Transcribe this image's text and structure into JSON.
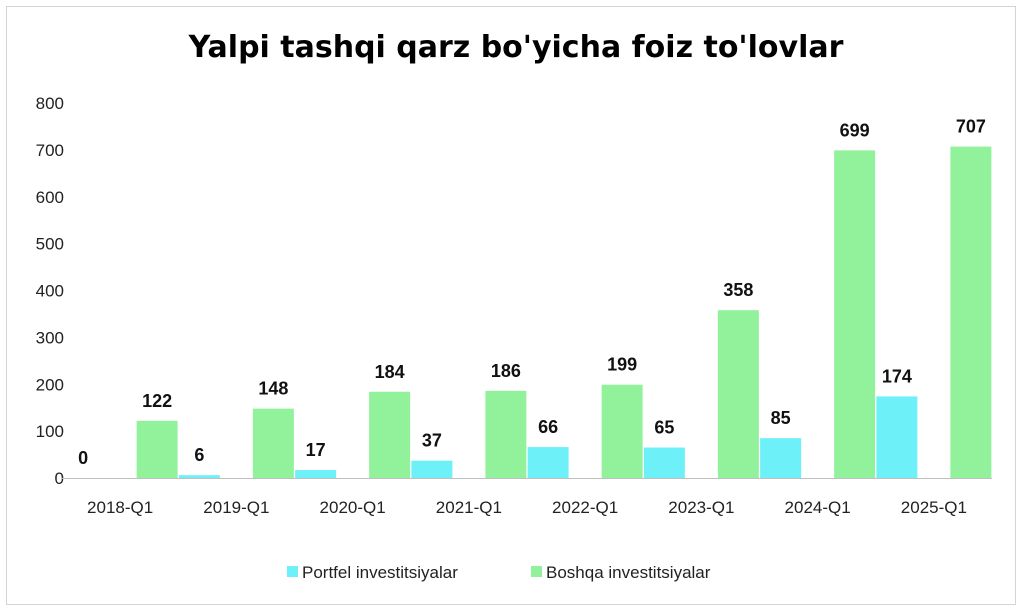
{
  "colors": {
    "portfel": "#6EF0F8",
    "boshqa": "#92F29C",
    "axis": "#bfbfbf",
    "text": "#222222"
  },
  "chart_data": {
    "type": "bar",
    "title": "Yalpi tashqi qarz bo'yicha foiz to'lovlar",
    "xlabel": "",
    "ylabel": "",
    "ylim": [
      0,
      800
    ],
    "yticks": [
      0,
      100,
      200,
      300,
      400,
      500,
      600,
      700,
      800
    ],
    "grid": false,
    "legend_position": "bottom",
    "categories": [
      "2018-Q1",
      "2019-Q1",
      "2020-Q1",
      "2021-Q1",
      "2022-Q1",
      "2023-Q1",
      "2024-Q1",
      "2025-Q1"
    ],
    "series": [
      {
        "name": "Portfel investitsiyalar",
        "color": "#6EF0F8",
        "values": [
          0,
          6,
          17,
          37,
          66,
          65,
          85,
          174
        ]
      },
      {
        "name": "Boshqa investitsiyalar",
        "color": "#92F29C",
        "values": [
          122,
          148,
          184,
          186,
          199,
          358,
          699,
          707
        ]
      }
    ]
  }
}
